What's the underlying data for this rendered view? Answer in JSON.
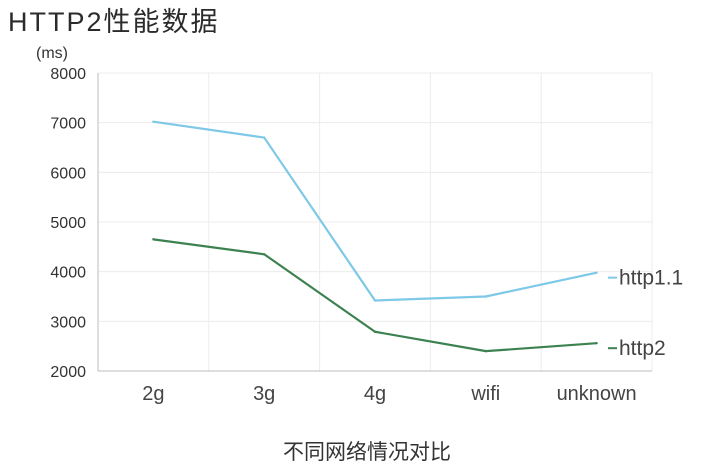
{
  "chart_data": {
    "type": "line",
    "title": "HTTP2性能数据",
    "xlabel": "不同网络情况对比",
    "ylabel": "(ms)",
    "categories": [
      "2g",
      "3g",
      "4g",
      "wifi",
      "unknown"
    ],
    "ylim": [
      2000,
      8000
    ],
    "yticks": [
      "8000",
      "7000",
      "6000",
      "5000",
      "4000",
      "3000",
      "2000"
    ],
    "grid": true,
    "legend_position": "right, at line ends",
    "series": [
      {
        "name": "http1.1",
        "color": "#7ec8e8",
        "values": [
          7020,
          6700,
          3420,
          3500,
          3980
        ]
      },
      {
        "name": "http2",
        "color": "#3c8250",
        "values": [
          4650,
          4350,
          2790,
          2400,
          2560
        ]
      }
    ]
  }
}
